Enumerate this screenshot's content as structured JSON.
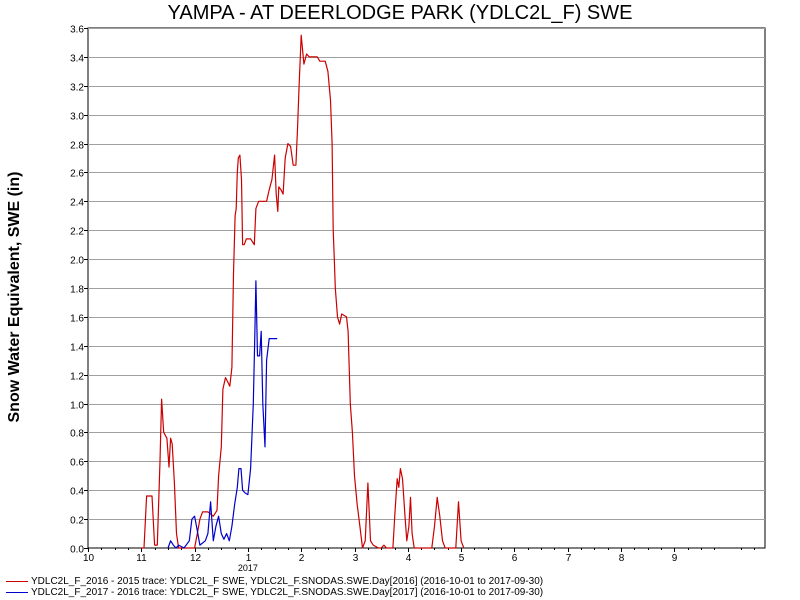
{
  "chart_data": {
    "type": "line",
    "title": "YAMPA - AT DEERLODGE PARK (YDLC2L_F) SWE",
    "ylabel": "Snow Water Equivalent, SWE (in)",
    "xlabel": "",
    "ylim": [
      0,
      3.6
    ],
    "yticks": [
      "0.0",
      "0.2",
      "0.4",
      "0.6",
      "0.8",
      "1.0",
      "1.2",
      "1.4",
      "1.6",
      "1.8",
      "2.0",
      "2.2",
      "2.4",
      "2.6",
      "2.8",
      "3.0",
      "3.2",
      "3.4",
      "3.6"
    ],
    "xlim": [
      10,
      22.7
    ],
    "xticks": [
      {
        "x": 10,
        "label": "10"
      },
      {
        "x": 11,
        "label": "11"
      },
      {
        "x": 12,
        "label": "12"
      },
      {
        "x": 13,
        "label": "1"
      },
      {
        "x": 14,
        "label": "2"
      },
      {
        "x": 15,
        "label": "3"
      },
      {
        "x": 16,
        "label": "4"
      },
      {
        "x": 17,
        "label": "5"
      },
      {
        "x": 18,
        "label": "6"
      },
      {
        "x": 19,
        "label": "7"
      },
      {
        "x": 20,
        "label": "8"
      },
      {
        "x": 21,
        "label": "9"
      }
    ],
    "year_label": {
      "x": 13,
      "label": "2017"
    },
    "grid": true,
    "series": [
      {
        "name": "YDLC2L_F_2016 - 2015 trace: YDLC2L_F SWE, YDLC2L_F.SNODAS.SWE.Day[2016] (2016-10-01 to 2017-09-30)",
        "color": "#cc0000",
        "points": [
          [
            11.0,
            0
          ],
          [
            11.05,
            0
          ],
          [
            11.1,
            0.36
          ],
          [
            11.2,
            0.36
          ],
          [
            11.25,
            0.02
          ],
          [
            11.3,
            0.02
          ],
          [
            11.35,
            0.6
          ],
          [
            11.38,
            1.03
          ],
          [
            11.42,
            0.8
          ],
          [
            11.48,
            0.76
          ],
          [
            11.52,
            0.56
          ],
          [
            11.55,
            0.76
          ],
          [
            11.58,
            0.72
          ],
          [
            11.62,
            0.45
          ],
          [
            11.66,
            0.1
          ],
          [
            11.7,
            0
          ],
          [
            12.0,
            0
          ],
          [
            12.05,
            0.1
          ],
          [
            12.1,
            0.2
          ],
          [
            12.15,
            0.25
          ],
          [
            12.25,
            0.25
          ],
          [
            12.35,
            0.22
          ],
          [
            12.42,
            0.26
          ],
          [
            12.45,
            0.5
          ],
          [
            12.5,
            0.7
          ],
          [
            12.53,
            1.1
          ],
          [
            12.58,
            1.18
          ],
          [
            12.62,
            1.15
          ],
          [
            12.66,
            1.12
          ],
          [
            12.7,
            1.25
          ],
          [
            12.73,
            1.9
          ],
          [
            12.76,
            2.3
          ],
          [
            12.78,
            2.35
          ],
          [
            12.8,
            2.6
          ],
          [
            12.82,
            2.7
          ],
          [
            12.85,
            2.72
          ],
          [
            12.88,
            2.55
          ],
          [
            12.9,
            2.1
          ],
          [
            12.93,
            2.1
          ],
          [
            12.97,
            2.14
          ],
          [
            13.05,
            2.14
          ],
          [
            13.12,
            2.1
          ],
          [
            13.15,
            2.35
          ],
          [
            13.2,
            2.4
          ],
          [
            13.35,
            2.4
          ],
          [
            13.4,
            2.48
          ],
          [
            13.45,
            2.55
          ],
          [
            13.5,
            2.72
          ],
          [
            13.53,
            2.45
          ],
          [
            13.56,
            2.33
          ],
          [
            13.58,
            2.5
          ],
          [
            13.62,
            2.48
          ],
          [
            13.66,
            2.45
          ],
          [
            13.7,
            2.7
          ],
          [
            13.75,
            2.8
          ],
          [
            13.8,
            2.78
          ],
          [
            13.85,
            2.65
          ],
          [
            13.9,
            2.65
          ],
          [
            13.93,
            2.9
          ],
          [
            13.96,
            3.2
          ],
          [
            14.0,
            3.55
          ],
          [
            14.05,
            3.35
          ],
          [
            14.1,
            3.42
          ],
          [
            14.15,
            3.4
          ],
          [
            14.3,
            3.4
          ],
          [
            14.35,
            3.37
          ],
          [
            14.45,
            3.37
          ],
          [
            14.5,
            3.3
          ],
          [
            14.55,
            3.1
          ],
          [
            14.58,
            2.8
          ],
          [
            14.6,
            2.2
          ],
          [
            14.62,
            2.0
          ],
          [
            14.64,
            1.8
          ],
          [
            14.68,
            1.6
          ],
          [
            14.72,
            1.55
          ],
          [
            14.76,
            1.62
          ],
          [
            14.85,
            1.6
          ],
          [
            14.88,
            1.5
          ],
          [
            14.92,
            1.0
          ],
          [
            14.96,
            0.8
          ],
          [
            15.0,
            0.5
          ],
          [
            15.05,
            0.3
          ],
          [
            15.1,
            0.15
          ],
          [
            15.15,
            0
          ],
          [
            15.2,
            0.05
          ],
          [
            15.25,
            0.45
          ],
          [
            15.3,
            0.05
          ],
          [
            15.35,
            0.02
          ],
          [
            15.45,
            0
          ],
          [
            15.5,
            0
          ],
          [
            15.55,
            0.02
          ],
          [
            15.6,
            0
          ],
          [
            15.72,
            0
          ],
          [
            15.76,
            0.25
          ],
          [
            15.8,
            0.48
          ],
          [
            15.83,
            0.42
          ],
          [
            15.86,
            0.55
          ],
          [
            15.9,
            0.48
          ],
          [
            15.95,
            0.2
          ],
          [
            15.98,
            0.05
          ],
          [
            16.02,
            0.15
          ],
          [
            16.05,
            0.35
          ],
          [
            16.08,
            0.1
          ],
          [
            16.12,
            0
          ],
          [
            16.45,
            0
          ],
          [
            16.5,
            0.15
          ],
          [
            16.55,
            0.35
          ],
          [
            16.6,
            0.22
          ],
          [
            16.65,
            0.05
          ],
          [
            16.7,
            0
          ],
          [
            16.9,
            0
          ],
          [
            16.95,
            0.32
          ],
          [
            17.0,
            0.05
          ],
          [
            17.05,
            0
          ]
        ]
      },
      {
        "name": "YDLC2L_F_2017 - 2016 trace: YDLC2L_F SWE, YDLC2L_F.SNODAS.SWE.Day[2017] (2016-10-01 to 2017-09-30)",
        "color": "#0000cc",
        "points": [
          [
            11.5,
            0
          ],
          [
            11.55,
            0.05
          ],
          [
            11.6,
            0.02
          ],
          [
            11.65,
            0
          ],
          [
            11.7,
            0.02
          ],
          [
            11.8,
            0
          ],
          [
            11.9,
            0.05
          ],
          [
            11.95,
            0.2
          ],
          [
            12.0,
            0.22
          ],
          [
            12.05,
            0.12
          ],
          [
            12.1,
            0.02
          ],
          [
            12.2,
            0.05
          ],
          [
            12.25,
            0.1
          ],
          [
            12.3,
            0.32
          ],
          [
            12.35,
            0.05
          ],
          [
            12.4,
            0.15
          ],
          [
            12.45,
            0.22
          ],
          [
            12.5,
            0.1
          ],
          [
            12.55,
            0.06
          ],
          [
            12.6,
            0.1
          ],
          [
            12.65,
            0.05
          ],
          [
            12.7,
            0.15
          ],
          [
            12.75,
            0.3
          ],
          [
            12.8,
            0.42
          ],
          [
            12.83,
            0.55
          ],
          [
            12.87,
            0.55
          ],
          [
            12.9,
            0.4
          ],
          [
            12.95,
            0.38
          ],
          [
            13.0,
            0.37
          ],
          [
            13.05,
            0.55
          ],
          [
            13.1,
            1.0
          ],
          [
            13.13,
            1.5
          ],
          [
            13.15,
            1.85
          ],
          [
            13.18,
            1.33
          ],
          [
            13.22,
            1.33
          ],
          [
            13.25,
            1.5
          ],
          [
            13.28,
            1.0
          ],
          [
            13.32,
            0.7
          ],
          [
            13.35,
            1.3
          ],
          [
            13.4,
            1.45
          ],
          [
            13.45,
            1.45
          ],
          [
            13.55,
            1.45
          ]
        ]
      }
    ]
  }
}
